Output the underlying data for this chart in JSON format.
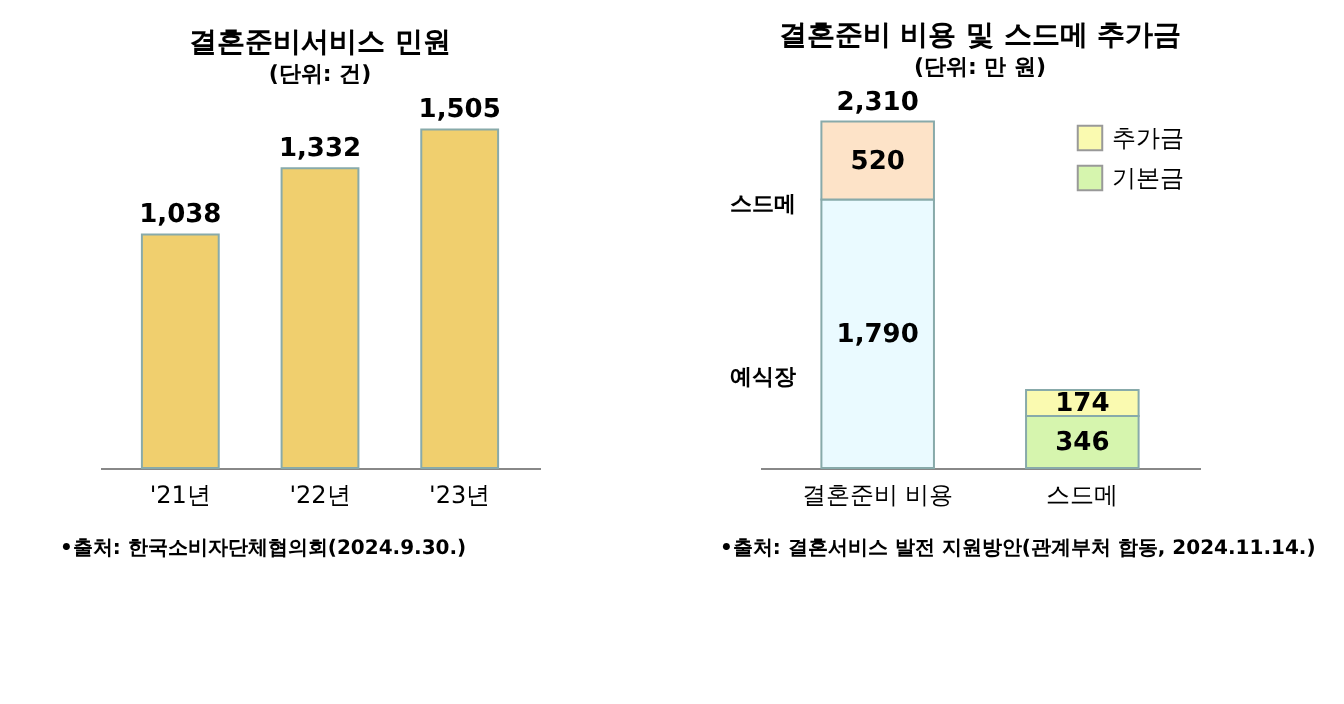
{
  "chart_data": [
    {
      "type": "bar",
      "title": "결혼준비서비스 민원",
      "subtitle": "(단위: 건)",
      "categories": [
        "'21년",
        "'22년",
        "'23년"
      ],
      "values": [
        1038,
        1332,
        1505
      ],
      "value_labels": [
        "1,038",
        "1,332",
        "1,505"
      ],
      "color": "#f0cf6e",
      "tick_labels": "x",
      "annotations": [
        "•출처: 한국소비자단체협의회(2024.9.30.)"
      ]
    },
    {
      "type": "bar",
      "title": "결혼준비 비용 및 스드메 추가금",
      "subtitle": "(단위: 만 원)",
      "categories": [
        "결혼준비 비용",
        "스드메"
      ],
      "stacked": true,
      "series": [
        {
          "color": "#eafaff",
          "values": [
            1790,
            null
          ],
          "value_labels": [
            "1,790",
            null
          ]
        },
        {
          "color": "#fde3c8",
          "values": [
            520,
            null
          ],
          "value_labels": [
            "520",
            null
          ]
        },
        {
          "name": "기본금",
          "color": "#d6f5ae",
          "values": [
            null,
            346
          ],
          "value_labels": [
            null,
            "346"
          ]
        },
        {
          "name": "추가금",
          "color": "#fafab0",
          "values": [
            null,
            174
          ],
          "value_labels": [
            null,
            "174"
          ]
        }
      ],
      "totals": [
        "2,310",
        null
      ],
      "legend": "top right",
      "tick_labels": "x",
      "annotations": [
        "스드메",
        "예식장",
        "•출처: 결혼서비스 발전 지원방안(관계부처 합동, 2024.11.14.)"
      ]
    }
  ]
}
